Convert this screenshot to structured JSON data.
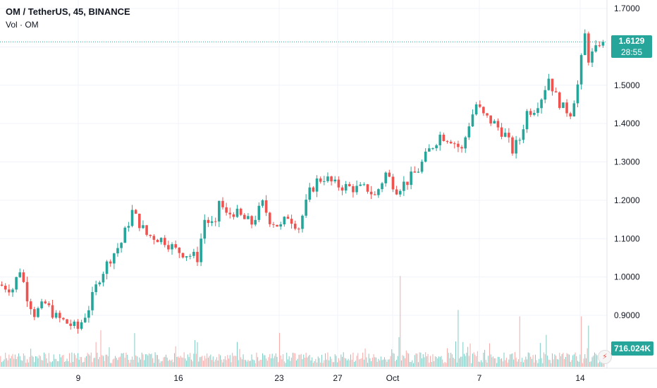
{
  "header": {
    "symbol_line": "OM / TetherUS, 45, BINANCE",
    "volume_line": "Vol · OM"
  },
  "price_badge": {
    "price": "1.6129",
    "countdown": "28:55"
  },
  "volume_badge": "716.024K",
  "icons": {
    "corner": "lightning-icon"
  },
  "colors": {
    "up": "#26a69a",
    "down": "#ef5350",
    "vol_up": "#80cbc4",
    "vol_down": "#f7a9a7"
  },
  "chart_data": {
    "type": "candlestick",
    "y_ticks": [
      "1.7000",
      "1.6000",
      "1.5000",
      "1.4000",
      "1.3000",
      "1.2000",
      "1.1000",
      "1.0000",
      "0.9000"
    ],
    "ylim": [
      0.88,
      1.72
    ],
    "x_ticks": [
      "9",
      "16",
      "23",
      "27",
      "Oct",
      "7",
      "14"
    ],
    "last_price": 1.6129,
    "path": [
      [
        0,
        0.98
      ],
      [
        4,
        0.97
      ],
      [
        6,
        1.02
      ],
      [
        8,
        0.95
      ],
      [
        10,
        0.905
      ],
      [
        13,
        0.93
      ],
      [
        16,
        0.895
      ],
      [
        19,
        0.88
      ],
      [
        22,
        0.865
      ],
      [
        25,
        0.92
      ],
      [
        28,
        1.0
      ],
      [
        31,
        1.05
      ],
      [
        34,
        1.09
      ],
      [
        37,
        1.17
      ],
      [
        39,
        1.14
      ],
      [
        41,
        1.11
      ],
      [
        43,
        1.105
      ],
      [
        46,
        1.095
      ],
      [
        49,
        1.07
      ],
      [
        52,
        1.06
      ],
      [
        55,
        1.05
      ],
      [
        57,
        1.15
      ],
      [
        60,
        1.13
      ],
      [
        61,
        1.2
      ],
      [
        63,
        1.16
      ],
      [
        65,
        1.17
      ],
      [
        68,
        1.15
      ],
      [
        70,
        1.14
      ],
      [
        73,
        1.19
      ],
      [
        75,
        1.15
      ],
      [
        78,
        1.13
      ],
      [
        80,
        1.16
      ],
      [
        83,
        1.13
      ],
      [
        86,
        1.22
      ],
      [
        88,
        1.25
      ],
      [
        90,
        1.26
      ],
      [
        93,
        1.24
      ],
      [
        96,
        1.235
      ],
      [
        99,
        1.23
      ],
      [
        102,
        1.23
      ],
      [
        104,
        1.21
      ],
      [
        107,
        1.27
      ],
      [
        110,
        1.23
      ],
      [
        113,
        1.25
      ],
      [
        116,
        1.28
      ],
      [
        119,
        1.33
      ],
      [
        122,
        1.37
      ],
      [
        125,
        1.36
      ],
      [
        128,
        1.33
      ],
      [
        130,
        1.4
      ],
      [
        132,
        1.45
      ],
      [
        134,
        1.42
      ],
      [
        137,
        1.4
      ],
      [
        140,
        1.37
      ],
      [
        142,
        1.33
      ],
      [
        144,
        1.36
      ],
      [
        146,
        1.43
      ],
      [
        148,
        1.44
      ],
      [
        150,
        1.47
      ],
      [
        152,
        1.52
      ],
      [
        154,
        1.47
      ],
      [
        156,
        1.44
      ],
      [
        158,
        1.43
      ],
      [
        160,
        1.5
      ],
      [
        162,
        1.63
      ],
      [
        163,
        1.57
      ],
      [
        165,
        1.59
      ],
      [
        166,
        1.6129
      ]
    ],
    "volume_spikes": [
      [
        110,
        0.99
      ],
      [
        126,
        0.62
      ],
      [
        143,
        0.55
      ],
      [
        160,
        0.55
      ],
      [
        162,
        0.45
      ]
    ]
  }
}
